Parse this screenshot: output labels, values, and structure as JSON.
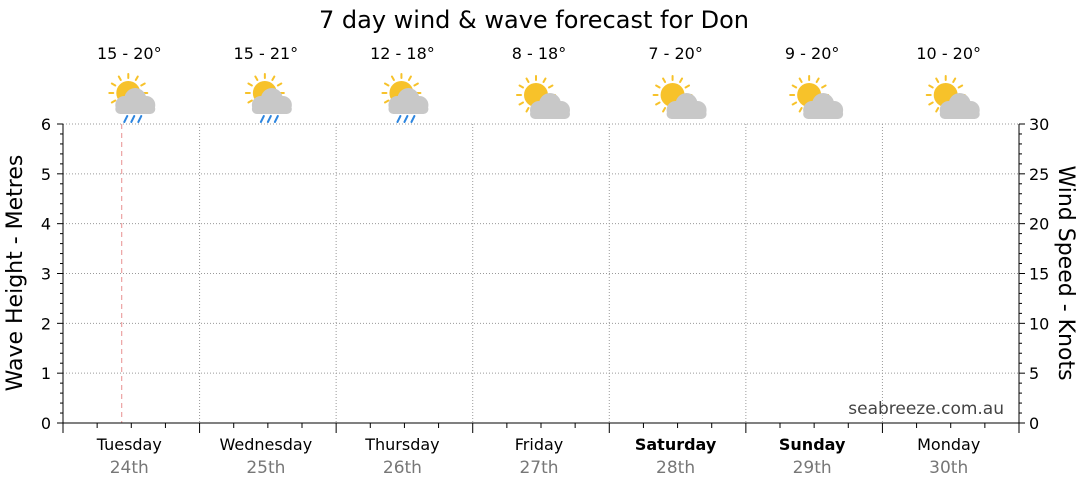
{
  "chart_data": {
    "type": "line",
    "title": "7 day wind & wave forecast for Don",
    "ylabel": "Wave Height - Metres",
    "y2label": "Wind Speed - Knots",
    "ylim": [
      0,
      6
    ],
    "y2lim": [
      0,
      30
    ],
    "yticks": [
      "0",
      "1",
      "2",
      "3",
      "4",
      "5",
      "6"
    ],
    "y2ticks": [
      "0",
      "5",
      "10",
      "15",
      "20",
      "25",
      "30"
    ],
    "grid": true,
    "current_time_day_index": 0,
    "days": [
      {
        "name": "Tuesday",
        "date": "24th",
        "temp": "15 - 20°",
        "icon": "sun-cloud-rain-icon",
        "bold": false
      },
      {
        "name": "Wednesday",
        "date": "25th",
        "temp": "15 - 21°",
        "icon": "sun-cloud-rain-icon",
        "bold": false
      },
      {
        "name": "Thursday",
        "date": "26th",
        "temp": "12 - 18°",
        "icon": "sun-cloud-rain-icon",
        "bold": false
      },
      {
        "name": "Friday",
        "date": "27th",
        "temp": "8 - 18°",
        "icon": "partly-cloudy-icon",
        "bold": false
      },
      {
        "name": "Saturday",
        "date": "28th",
        "temp": "7 - 20°",
        "icon": "partly-cloudy-icon",
        "bold": true
      },
      {
        "name": "Sunday",
        "date": "29th",
        "temp": "9 - 20°",
        "icon": "partly-cloudy-icon",
        "bold": true
      },
      {
        "name": "Monday",
        "date": "30th",
        "temp": "10 - 20°",
        "icon": "partly-cloudy-icon",
        "bold": false
      }
    ],
    "series": []
  },
  "credit": "seabreeze.com.au",
  "colors": {
    "sun": "#F7C22A",
    "cloud": "#C8C8C8",
    "rain": "#2E86E0",
    "now_line": "#E89090",
    "grid": "#9A9A9A"
  }
}
